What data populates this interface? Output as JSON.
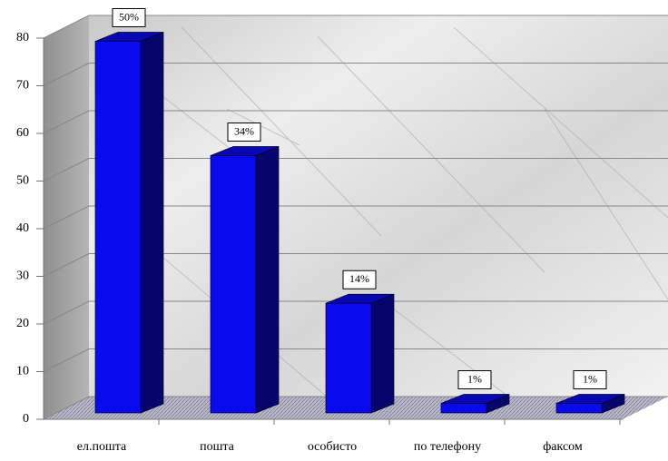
{
  "chart_data": {
    "type": "bar3d",
    "categories": [
      "ел.пошта",
      "пошта",
      "особисто",
      "по телефону",
      "факсом"
    ],
    "values": [
      78,
      54,
      23,
      2,
      2
    ],
    "percent_labels": [
      "50%",
      "34%",
      "14%",
      "1%",
      "1%"
    ],
    "color": "#0a0aee",
    "ylim": [
      0,
      80
    ],
    "yticks": [
      0,
      10,
      20,
      30,
      40,
      50,
      60,
      70,
      80
    ],
    "grid": true
  }
}
